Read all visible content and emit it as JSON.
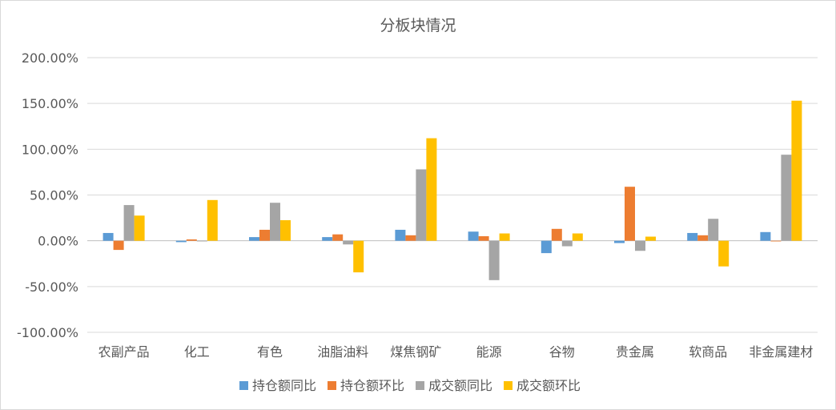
{
  "chart_data": {
    "type": "bar",
    "title": "分板块情况",
    "categories": [
      "农副产品",
      "化工",
      "有色",
      "油脂油料",
      "煤焦钢矿",
      "能源",
      "谷物",
      "贵金属",
      "软商品",
      "非金属建材"
    ],
    "series": [
      {
        "name": "持仓额同比",
        "color": "#5b9bd5",
        "values": [
          8.5,
          -1.5,
          4.0,
          4.0,
          12.0,
          10.0,
          -13.5,
          -2.5,
          8.5,
          9.5
        ]
      },
      {
        "name": "持仓额环比",
        "color": "#ed7d31",
        "values": [
          -10.0,
          1.5,
          12.0,
          7.0,
          6.0,
          5.0,
          13.0,
          59.0,
          6.0,
          0.0
        ]
      },
      {
        "name": "成交额同比",
        "color": "#a5a5a5",
        "values": [
          39.0,
          0.0,
          41.5,
          -4.0,
          78.0,
          -43.0,
          -6.0,
          -11.0,
          24.0,
          94.0
        ]
      },
      {
        "name": "成交额环比",
        "color": "#ffc000",
        "values": [
          27.5,
          44.5,
          22.5,
          -34.5,
          112.0,
          8.0,
          8.0,
          4.5,
          -28.0,
          153.0
        ]
      }
    ],
    "ylim": [
      -100,
      200
    ],
    "yticks": [
      -100,
      -50,
      0,
      50,
      100,
      150,
      200
    ],
    "ytick_labels": [
      "-100.00%",
      "-50.00%",
      "0.00%",
      "50.00%",
      "100.00%",
      "150.00%",
      "200.00%"
    ],
    "grid": true,
    "legend": "bottom"
  }
}
